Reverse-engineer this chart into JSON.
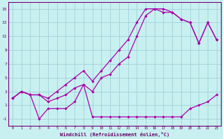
{
  "xlabel": "Windchill (Refroidissement éolien,°C)",
  "bg_color": "#c8f0f0",
  "grid_color": "#a0d0d8",
  "line_color": "#aa00aa",
  "xlim": [
    -0.5,
    23.5
  ],
  "ylim": [
    -2,
    16
  ],
  "xticks": [
    0,
    1,
    2,
    3,
    4,
    5,
    6,
    7,
    8,
    9,
    10,
    11,
    12,
    13,
    14,
    15,
    16,
    17,
    18,
    19,
    20,
    21,
    22,
    23
  ],
  "yticks": [
    -1,
    1,
    3,
    5,
    7,
    9,
    11,
    13,
    15
  ],
  "series1_y": [
    2.0,
    3.0,
    2.5,
    -1.0,
    0.5,
    0.5,
    0.5,
    1.5,
    4.0,
    -0.7,
    -0.7,
    -0.7,
    -0.7,
    -0.7,
    -0.7,
    -0.7,
    -0.7,
    -0.7,
    -0.7,
    -0.7,
    0.5,
    1.0,
    1.5,
    2.5
  ],
  "series2_y": [
    2.0,
    3.0,
    2.5,
    2.5,
    1.5,
    2.0,
    2.5,
    3.5,
    4.0,
    3.0,
    5.0,
    5.5,
    7.0,
    8.0,
    11.0,
    14.0,
    15.0,
    15.0,
    14.5,
    13.5,
    13.0,
    10.0,
    13.0,
    10.5
  ],
  "series3_y": [
    2.0,
    3.0,
    2.5,
    2.5,
    2.0,
    3.0,
    4.0,
    5.0,
    6.0,
    4.5,
    6.0,
    7.5,
    9.0,
    10.5,
    13.0,
    15.0,
    15.0,
    14.5,
    14.5,
    13.5,
    13.0,
    10.0,
    13.0,
    10.5
  ]
}
